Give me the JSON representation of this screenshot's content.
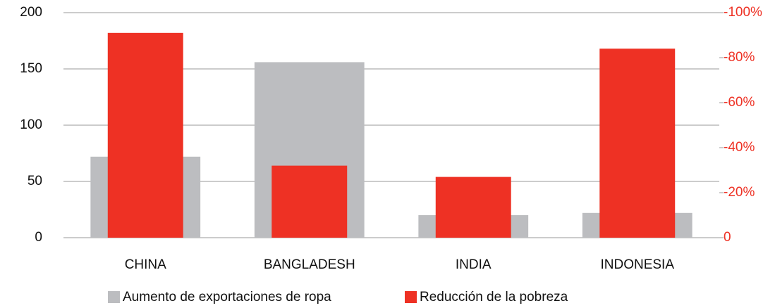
{
  "chart_data": {
    "type": "bar",
    "categories": [
      "CHINA",
      "BANGLADESH",
      "INDIA",
      "INDONESIA"
    ],
    "series": [
      {
        "name": "Aumento de exportaciones de ropa",
        "color": "#bcbdc0",
        "values": [
          72,
          156,
          20,
          22
        ]
      },
      {
        "name": "Reducción de la pobreza",
        "color": "#ee3124",
        "axis": "y2",
        "values": [
          -91,
          -32,
          -27,
          -84
        ]
      }
    ],
    "ylim": [
      0,
      200
    ],
    "yticks": [
      0,
      50,
      100,
      150,
      200
    ],
    "y2lim": [
      0,
      -100
    ],
    "y2ticks": [
      0,
      {
        "value": -20,
        "label": "-20%"
      },
      {
        "value": -40,
        "label": "-40%"
      },
      {
        "value": -60,
        "label": "-60%"
      },
      {
        "value": -80,
        "label": "-80%"
      },
      {
        "value": -100,
        "label": "-100%"
      }
    ],
    "y2color": "#ee3124",
    "grid": true
  }
}
